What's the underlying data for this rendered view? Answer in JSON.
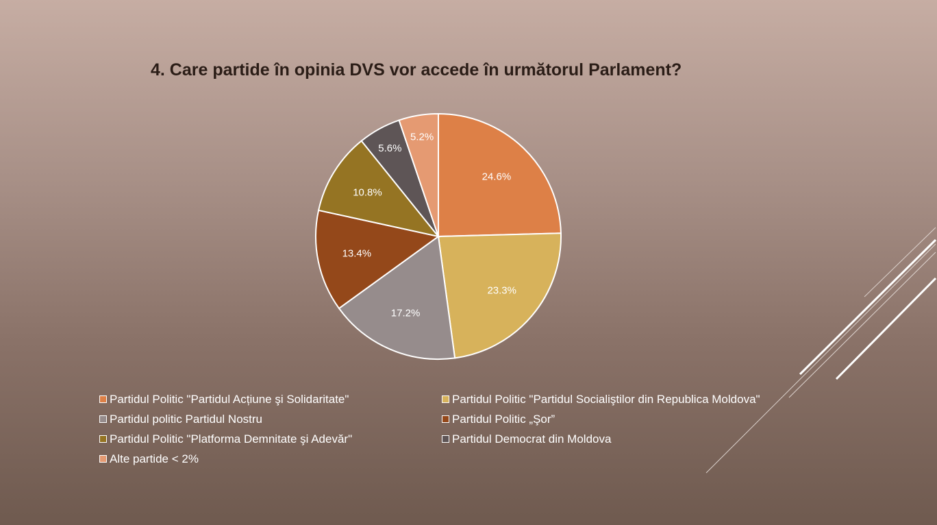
{
  "chart_data": {
    "type": "pie",
    "title": "4. Care partide în opinia DVS vor accede în următorul Parlament?",
    "slices": [
      {
        "label": "Partidul Politic \"Partidul Acțiune şi Solidaritate\"",
        "value": 24.6,
        "value_label": "24.6%",
        "color": "#dd8047"
      },
      {
        "label": "Partidul Politic \"Partidul Socialiştilor din Republica Moldova\"",
        "value": 23.3,
        "value_label": "23.3%",
        "color": "#d7b25b"
      },
      {
        "label": "Partidul politic Partidul Nostru",
        "value": 17.2,
        "value_label": "17.2%",
        "color": "#968c8c"
      },
      {
        "label": "Partidul Politic „Şor”",
        "value": 13.4,
        "value_label": "13.4%",
        "color": "#94481a"
      },
      {
        "label": "Partidul Politic \"Platforma Demnitate şi Adevăr\"",
        "value": 10.8,
        "value_label": "10.8%",
        "color": "#957423"
      },
      {
        "label": "Partidul Democrat din Moldova",
        "value": 5.6,
        "value_label": "5.6%",
        "color": "#5e5556"
      },
      {
        "label": "Alte partide < 2%",
        "value": 5.2,
        "value_label": "5.2%",
        "color": "#e59a72"
      }
    ],
    "legend_position": "bottom"
  }
}
